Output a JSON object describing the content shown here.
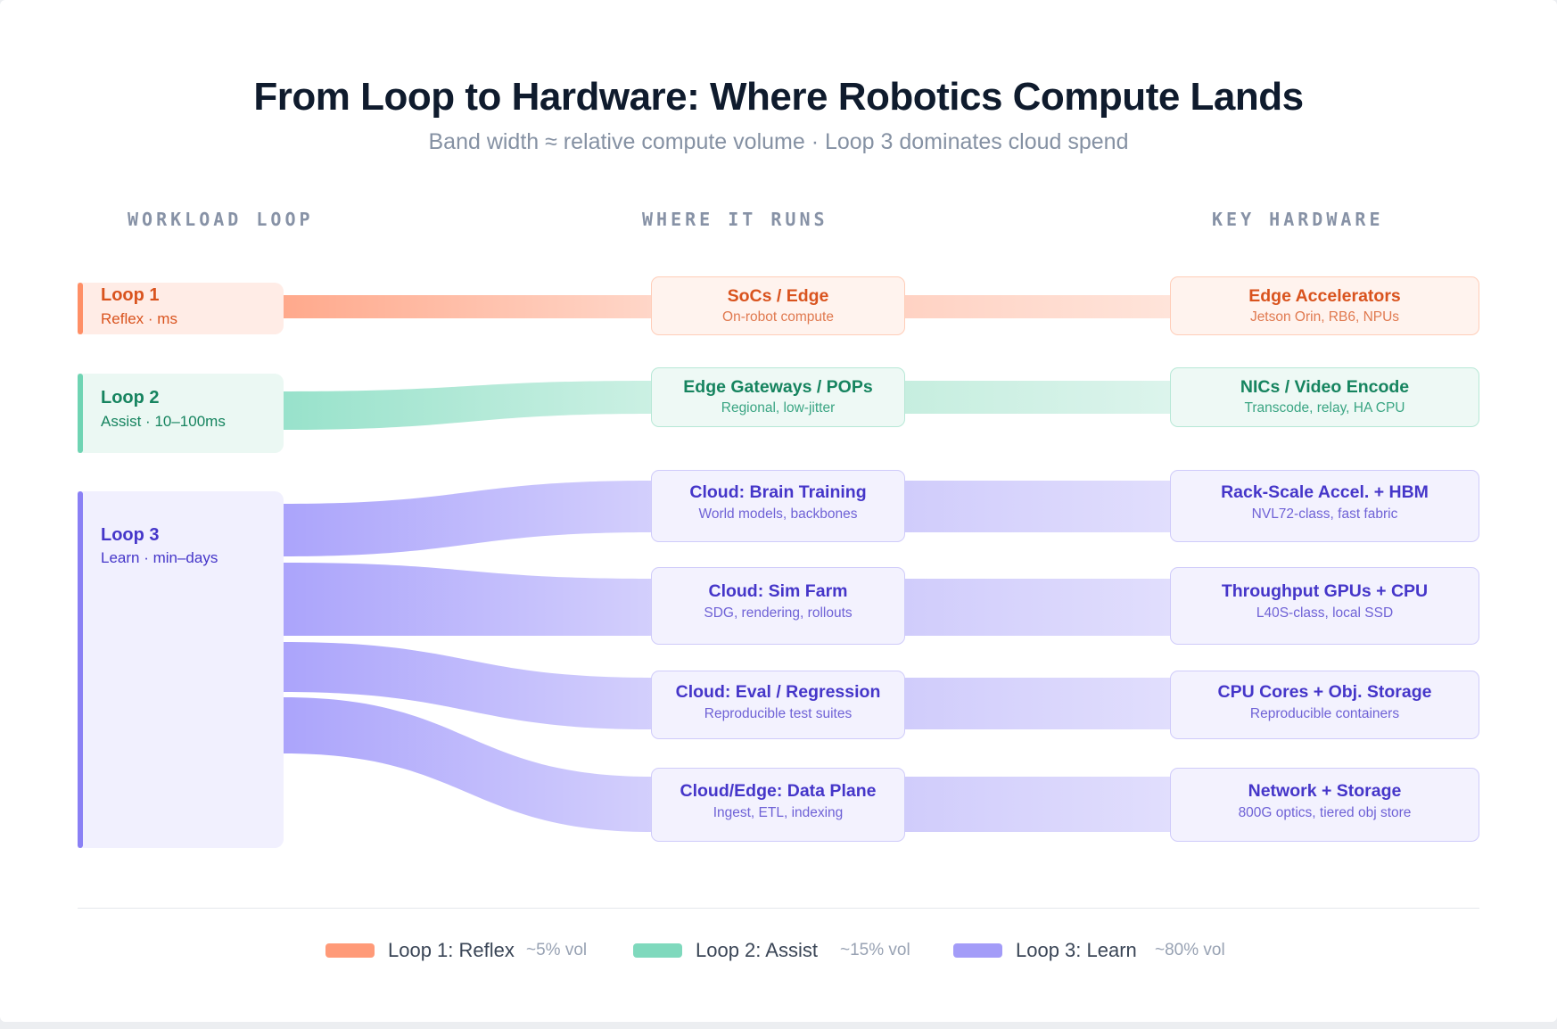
{
  "title": "From Loop to Hardware: Where Robotics Compute Lands",
  "subtitle": "Band width ≈ relative compute volume · Loop 3 dominates cloud spend",
  "columns": {
    "workload": "WORKLOAD LOOP",
    "runs": "WHERE IT RUNS",
    "hardware": "KEY HARDWARE"
  },
  "colors": {
    "loop1": "#ff9a78",
    "loop2": "#7fd9bd",
    "loop3": "#a39cf8",
    "loop1_text": "#d9531e",
    "loop2_text": "#16845f",
    "loop3_text": "#4536c9"
  },
  "loops": [
    {
      "name": "Loop 1",
      "sub": "Reflex · ms"
    },
    {
      "name": "Loop 2",
      "sub": "Assist · 10–100ms"
    },
    {
      "name": "Loop 3",
      "sub": "Learn · min–days"
    }
  ],
  "runs": [
    {
      "title": "SoCs / Edge",
      "sub": "On-robot compute"
    },
    {
      "title": "Edge Gateways / POPs",
      "sub": "Regional, low-jitter"
    },
    {
      "title": "Cloud: Brain Training",
      "sub": "World models, backbones"
    },
    {
      "title": "Cloud: Sim Farm",
      "sub": "SDG, rendering, rollouts"
    },
    {
      "title": "Cloud: Eval / Regression",
      "sub": "Reproducible test suites"
    },
    {
      "title": "Cloud/Edge: Data Plane",
      "sub": "Ingest, ETL, indexing"
    }
  ],
  "hardware": [
    {
      "title": "Edge Accelerators",
      "sub": "Jetson Orin, RB6, NPUs"
    },
    {
      "title": "NICs / Video Encode",
      "sub": "Transcode, relay, HA CPU"
    },
    {
      "title": "Rack-Scale Accel. + HBM",
      "sub": "NVL72-class, fast fabric"
    },
    {
      "title": "Throughput GPUs + CPU",
      "sub": "L40S-class, local SSD"
    },
    {
      "title": "CPU Cores + Obj. Storage",
      "sub": "Reproducible containers"
    },
    {
      "title": "Network + Storage",
      "sub": "800G optics, tiered obj store"
    }
  ],
  "legend": [
    {
      "label": "Loop 1: Reflex",
      "vol": "~5% vol"
    },
    {
      "label": "Loop 2: Assist",
      "vol": "~15% vol"
    },
    {
      "label": "Loop 3: Learn",
      "vol": "~80% vol"
    }
  ]
}
